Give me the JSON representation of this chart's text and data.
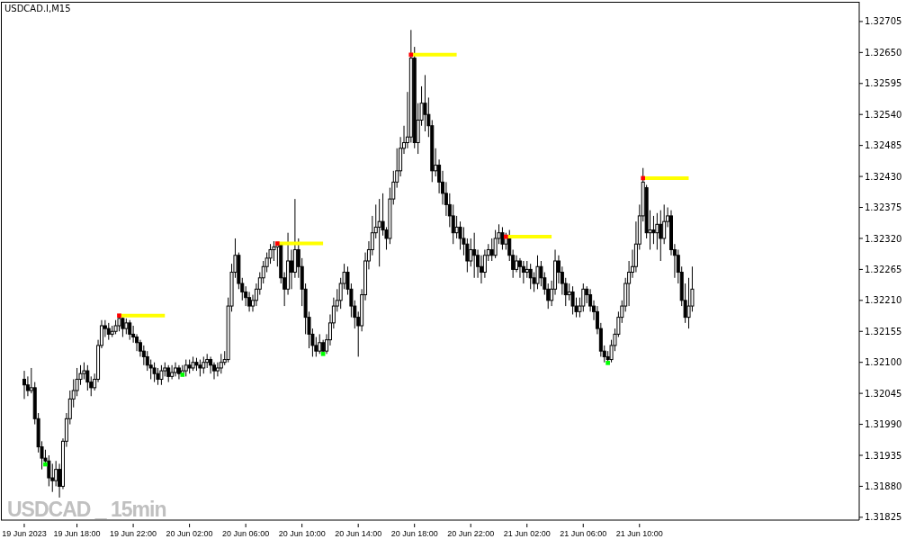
{
  "chart_data": {
    "type": "candlestick",
    "title": "USDCAD.I,M15",
    "color": "#000000",
    "annotations": [
      "USDCAD _ 15min"
    ],
    "categories": [
      "19 Jun 2023",
      null,
      null,
      null,
      null,
      null,
      null,
      null,
      null,
      null,
      null,
      null,
      null,
      null,
      null,
      "19 Jun 18:00",
      null,
      null,
      null,
      null,
      null,
      null,
      null,
      null,
      null,
      null,
      null,
      null,
      null,
      null,
      null,
      "19 Jun 22:00",
      null,
      null,
      null,
      null,
      null,
      null,
      null,
      null,
      null,
      null,
      null,
      null,
      null,
      null,
      null,
      "20 Jun 02:00",
      null,
      null,
      null,
      null,
      null,
      null,
      null,
      null,
      null,
      null,
      null,
      null,
      null,
      null,
      null,
      "20 Jun 06:00",
      null,
      null,
      null,
      null,
      null,
      null,
      null,
      null,
      null,
      null,
      null,
      null,
      null,
      null,
      null,
      "20 Jun 10:00",
      null,
      null,
      null,
      null,
      null,
      null,
      null,
      null,
      null,
      null,
      null,
      null,
      null,
      null,
      null,
      "20 Jun 14:00",
      null,
      null,
      null,
      null,
      null,
      null,
      null,
      null,
      null,
      null,
      null,
      null,
      null,
      null,
      null,
      "20 Jun 18:00",
      null,
      null,
      null,
      null,
      null,
      null,
      null,
      null,
      null,
      null,
      null,
      null,
      null,
      null,
      null,
      "20 Jun 22:00",
      null,
      null,
      null,
      null,
      null,
      null,
      null,
      null,
      null,
      null,
      null,
      null,
      null,
      null,
      null,
      "21 Jun 02:00",
      null,
      null,
      null,
      null,
      null,
      null,
      null,
      null,
      null,
      null,
      null,
      null,
      null,
      null,
      null,
      "21 Jun 06:00",
      null,
      null,
      null,
      null,
      null,
      null,
      null,
      null,
      null,
      null,
      null,
      null,
      null,
      null,
      null,
      "21 Jun 10:00",
      null,
      null,
      null,
      null,
      null,
      null,
      null,
      null,
      null,
      null,
      null,
      null,
      null,
      null,
      null,
      null,
      null,
      null,
      null,
      null,
      null,
      null,
      null,
      null,
      null,
      null,
      null,
      null,
      null,
      null,
      null,
      null,
      null,
      null,
      null,
      null,
      null,
      null,
      null,
      null,
      null,
      null,
      null,
      null,
      null,
      null,
      null,
      null,
      null,
      null,
      null,
      null,
      null,
      null,
      null,
      null,
      null,
      null,
      null,
      null,
      null,
      null
    ],
    "ohlc": [
      [
        1.3207,
        1.32085,
        1.32035,
        1.3206
      ],
      [
        1.3206,
        1.32075,
        1.3204,
        1.3205
      ],
      [
        1.3205,
        1.3209,
        1.32045,
        1.32055
      ],
      [
        1.32055,
        1.32065,
        1.3199,
        1.32
      ],
      [
        1.32,
        1.3201,
        1.3194,
        1.3195
      ],
      [
        1.3195,
        1.3196,
        1.3191,
        1.3193
      ],
      [
        1.3193,
        1.31945,
        1.31919,
        1.31925
      ],
      [
        1.31925,
        1.31935,
        1.3188,
        1.31895
      ],
      [
        1.31895,
        1.3192,
        1.3187,
        1.3189
      ],
      [
        1.3189,
        1.31925,
        1.3188,
        1.3191
      ],
      [
        1.3191,
        1.3192,
        1.3186,
        1.3188
      ],
      [
        1.3188,
        1.31965,
        1.31875,
        1.3196
      ],
      [
        1.3196,
        1.3201,
        1.3195,
        1.32
      ],
      [
        1.32,
        1.3205,
        1.3199,
        1.32035
      ],
      [
        1.32035,
        1.3207,
        1.3202,
        1.3205
      ],
      [
        1.3205,
        1.3209,
        1.3204,
        1.3207
      ],
      [
        1.3207,
        1.32095,
        1.3206,
        1.3208
      ],
      [
        1.3208,
        1.321,
        1.3207,
        1.32085
      ],
      [
        1.32085,
        1.32095,
        1.3205,
        1.32065
      ],
      [
        1.32065,
        1.32075,
        1.3204,
        1.32055
      ],
      [
        1.32055,
        1.3208,
        1.3205,
        1.3207
      ],
      [
        1.3207,
        1.3214,
        1.32065,
        1.3213
      ],
      [
        1.3213,
        1.32175,
        1.32125,
        1.32165
      ],
      [
        1.32165,
        1.32175,
        1.32145,
        1.3216
      ],
      [
        1.3216,
        1.3217,
        1.3214,
        1.3215
      ],
      [
        1.3215,
        1.32165,
        1.32145,
        1.32155
      ],
      [
        1.32155,
        1.32175,
        1.3215,
        1.32165
      ],
      [
        1.32165,
        1.32183,
        1.32155,
        1.32178
      ],
      [
        1.32178,
        1.3218,
        1.32145,
        1.3216
      ],
      [
        1.3216,
        1.32178,
        1.3215,
        1.3217
      ],
      [
        1.3217,
        1.32175,
        1.3214,
        1.3215
      ],
      [
        1.3215,
        1.32165,
        1.32135,
        1.32145
      ],
      [
        1.32145,
        1.3215,
        1.3212,
        1.32135
      ],
      [
        1.32135,
        1.3214,
        1.3211,
        1.3212
      ],
      [
        1.3212,
        1.3213,
        1.32095,
        1.3211
      ],
      [
        1.3211,
        1.3212,
        1.32085,
        1.32095
      ],
      [
        1.32095,
        1.32105,
        1.3207,
        1.3209
      ],
      [
        1.3209,
        1.321,
        1.32065,
        1.3208
      ],
      [
        1.3208,
        1.3209,
        1.3206,
        1.3207
      ],
      [
        1.3207,
        1.32095,
        1.3206,
        1.32085
      ],
      [
        1.32085,
        1.321,
        1.32075,
        1.3209
      ],
      [
        1.3209,
        1.32095,
        1.32065,
        1.32075
      ],
      [
        1.32075,
        1.32095,
        1.3207,
        1.32082
      ],
      [
        1.32082,
        1.321,
        1.32075,
        1.3209
      ],
      [
        1.3209,
        1.32095,
        1.3207,
        1.3208
      ],
      [
        1.3208,
        1.32095,
        1.32078,
        1.32085
      ],
      [
        1.32085,
        1.32105,
        1.32075,
        1.32095
      ],
      [
        1.32095,
        1.32105,
        1.3208,
        1.3209
      ],
      [
        1.3209,
        1.3211,
        1.32085,
        1.321
      ],
      [
        1.321,
        1.32108,
        1.32085,
        1.32095
      ],
      [
        1.32095,
        1.32105,
        1.32075,
        1.3209
      ],
      [
        1.3209,
        1.3211,
        1.3208,
        1.321
      ],
      [
        1.321,
        1.32115,
        1.3209,
        1.32105
      ],
      [
        1.32105,
        1.3211,
        1.3208,
        1.32095
      ],
      [
        1.32095,
        1.321,
        1.3207,
        1.32085
      ],
      [
        1.32085,
        1.321,
        1.32075,
        1.3209
      ],
      [
        1.3209,
        1.32115,
        1.3208,
        1.321
      ],
      [
        1.321,
        1.3212,
        1.32095,
        1.32105
      ],
      [
        1.32105,
        1.32215,
        1.321,
        1.322
      ],
      [
        1.322,
        1.32275,
        1.3219,
        1.3226
      ],
      [
        1.3226,
        1.3232,
        1.3225,
        1.3229
      ],
      [
        1.3229,
        1.32295,
        1.3223,
        1.3224
      ],
      [
        1.3224,
        1.3225,
        1.3221,
        1.32225
      ],
      [
        1.32225,
        1.32235,
        1.322,
        1.32215
      ],
      [
        1.32215,
        1.32225,
        1.3219,
        1.322
      ],
      [
        1.322,
        1.3222,
        1.3219,
        1.3221
      ],
      [
        1.3221,
        1.3224,
        1.322,
        1.3223
      ],
      [
        1.3223,
        1.3226,
        1.3222,
        1.3225
      ],
      [
        1.3225,
        1.3228,
        1.3224,
        1.3227
      ],
      [
        1.3227,
        1.32295,
        1.3226,
        1.32285
      ],
      [
        1.32285,
        1.3231,
        1.32275,
        1.323
      ],
      [
        1.323,
        1.32315,
        1.3228,
        1.32305
      ],
      [
        1.32305,
        1.32311,
        1.3227,
        1.32308
      ],
      [
        1.32308,
        1.32312,
        1.3224,
        1.3225
      ],
      [
        1.3225,
        1.3226,
        1.322,
        1.3223
      ],
      [
        1.3223,
        1.3233,
        1.3222,
        1.3228
      ],
      [
        1.3228,
        1.323,
        1.3223,
        1.3226
      ],
      [
        1.3226,
        1.3239,
        1.3225,
        1.323
      ],
      [
        1.323,
        1.3232,
        1.3225,
        1.3227
      ],
      [
        1.3227,
        1.32285,
        1.322,
        1.3223
      ],
      [
        1.3223,
        1.3224,
        1.3215,
        1.3218
      ],
      [
        1.3218,
        1.3219,
        1.32125,
        1.3215
      ],
      [
        1.3215,
        1.3216,
        1.3211,
        1.3213
      ],
      [
        1.3213,
        1.32145,
        1.3211,
        1.3212
      ],
      [
        1.3212,
        1.3215,
        1.32115,
        1.32135
      ],
      [
        1.32135,
        1.3214,
        1.32115,
        1.3212
      ],
      [
        1.3212,
        1.3215,
        1.32115,
        1.3214
      ],
      [
        1.3214,
        1.32185,
        1.3213,
        1.3217
      ],
      [
        1.3217,
        1.32215,
        1.3216,
        1.322
      ],
      [
        1.322,
        1.3223,
        1.3219,
        1.3221
      ],
      [
        1.3221,
        1.3225,
        1.32195,
        1.3224
      ],
      [
        1.3224,
        1.32275,
        1.3223,
        1.3226
      ],
      [
        1.3226,
        1.3227,
        1.3222,
        1.3223
      ],
      [
        1.3223,
        1.3224,
        1.3218,
        1.322
      ],
      [
        1.322,
        1.3221,
        1.3216,
        1.3218
      ],
      [
        1.3218,
        1.3219,
        1.3211,
        1.32165
      ],
      [
        1.32165,
        1.3223,
        1.32155,
        1.3222
      ],
      [
        1.3222,
        1.32295,
        1.3221,
        1.3228
      ],
      [
        1.3228,
        1.32315,
        1.32265,
        1.323
      ],
      [
        1.323,
        1.3236,
        1.3229,
        1.3233
      ],
      [
        1.3233,
        1.3238,
        1.3232,
        1.3234
      ],
      [
        1.3234,
        1.3239,
        1.3227,
        1.3235
      ],
      [
        1.3235,
        1.324,
        1.32325,
        1.32335
      ],
      [
        1.32335,
        1.3234,
        1.323,
        1.3232
      ],
      [
        1.3232,
        1.3241,
        1.3231,
        1.3239
      ],
      [
        1.3239,
        1.3244,
        1.3238,
        1.3242
      ],
      [
        1.3242,
        1.3248,
        1.3241,
        1.3244
      ],
      [
        1.3244,
        1.325,
        1.3243,
        1.3248
      ],
      [
        1.3248,
        1.3252,
        1.3247,
        1.3249
      ],
      [
        1.3249,
        1.3258,
        1.3248,
        1.325
      ],
      [
        1.325,
        1.3269,
        1.3249,
        1.3264
      ],
      [
        1.3264,
        1.3266,
        1.3248,
        1.3249
      ],
      [
        1.3249,
        1.3256,
        1.3247,
        1.3253
      ],
      [
        1.3253,
        1.3259,
        1.3252,
        1.3256
      ],
      [
        1.3256,
        1.3261,
        1.3251,
        1.3254
      ],
      [
        1.3254,
        1.3257,
        1.325,
        1.3252
      ],
      [
        1.3252,
        1.3253,
        1.3242,
        1.3244
      ],
      [
        1.3244,
        1.3248,
        1.3243,
        1.3245
      ],
      [
        1.3245,
        1.3246,
        1.324,
        1.3242
      ],
      [
        1.3242,
        1.3244,
        1.3238,
        1.324
      ],
      [
        1.324,
        1.3242,
        1.3236,
        1.3238
      ],
      [
        1.3238,
        1.324,
        1.3234,
        1.3236
      ],
      [
        1.3236,
        1.3238,
        1.3231,
        1.3233
      ],
      [
        1.3233,
        1.3236,
        1.3232,
        1.3234
      ],
      [
        1.3234,
        1.3235,
        1.323,
        1.3232
      ],
      [
        1.3232,
        1.3234,
        1.3229,
        1.3231
      ],
      [
        1.3231,
        1.3232,
        1.3226,
        1.3228
      ],
      [
        1.3228,
        1.3232,
        1.3227,
        1.323
      ],
      [
        1.323,
        1.3233,
        1.3225,
        1.3229
      ],
      [
        1.3229,
        1.323,
        1.3225,
        1.3227
      ],
      [
        1.3227,
        1.3229,
        1.3224,
        1.3226
      ],
      [
        1.3226,
        1.323,
        1.3225,
        1.3229
      ],
      [
        1.3229,
        1.3231,
        1.3228,
        1.323
      ],
      [
        1.323,
        1.3232,
        1.3228,
        1.3229
      ],
      [
        1.3229,
        1.32335,
        1.32285,
        1.3232
      ],
      [
        1.3232,
        1.32345,
        1.3231,
        1.3233
      ],
      [
        1.3233,
        1.3234,
        1.323,
        1.3231
      ],
      [
        1.3231,
        1.3233,
        1.323,
        1.32325
      ],
      [
        1.32325,
        1.32335,
        1.3228,
        1.3229
      ],
      [
        1.3229,
        1.323,
        1.3225,
        1.32265
      ],
      [
        1.32265,
        1.3229,
        1.3226,
        1.3228
      ],
      [
        1.3228,
        1.32285,
        1.3225,
        1.3227
      ],
      [
        1.3227,
        1.3228,
        1.3224,
        1.3226
      ],
      [
        1.3226,
        1.3228,
        1.3225,
        1.32265
      ],
      [
        1.32265,
        1.32275,
        1.3223,
        1.3225
      ],
      [
        1.3225,
        1.3226,
        1.32225,
        1.3224
      ],
      [
        1.3224,
        1.3229,
        1.3223,
        1.3227
      ],
      [
        1.3227,
        1.3228,
        1.32235,
        1.3225
      ],
      [
        1.3225,
        1.3226,
        1.3222,
        1.3223
      ],
      [
        1.3223,
        1.3224,
        1.32195,
        1.3221
      ],
      [
        1.3221,
        1.32245,
        1.322,
        1.3223
      ],
      [
        1.3223,
        1.323,
        1.3222,
        1.3228
      ],
      [
        1.3228,
        1.3229,
        1.3224,
        1.3226
      ],
      [
        1.3226,
        1.3227,
        1.3222,
        1.3224
      ],
      [
        1.3224,
        1.3225,
        1.322,
        1.3222
      ],
      [
        1.3222,
        1.3224,
        1.3221,
        1.32225
      ],
      [
        1.32225,
        1.32235,
        1.32185,
        1.322
      ],
      [
        1.322,
        1.32215,
        1.3218,
        1.3219
      ],
      [
        1.3219,
        1.32215,
        1.3218,
        1.322
      ],
      [
        1.322,
        1.3224,
        1.3219,
        1.3223
      ],
      [
        1.3223,
        1.32235,
        1.32205,
        1.3222
      ],
      [
        1.3222,
        1.3223,
        1.3219,
        1.322
      ],
      [
        1.322,
        1.3221,
        1.32175,
        1.3219
      ],
      [
        1.3219,
        1.322,
        1.3215,
        1.3216
      ],
      [
        1.3216,
        1.3217,
        1.3211,
        1.3212
      ],
      [
        1.3212,
        1.3213,
        1.321,
        1.3211
      ],
      [
        1.3211,
        1.3212,
        1.32099,
        1.32105
      ],
      [
        1.32105,
        1.3214,
        1.321,
        1.3213
      ],
      [
        1.3213,
        1.3216,
        1.3212,
        1.3215
      ],
      [
        1.3215,
        1.3219,
        1.32145,
        1.3218
      ],
      [
        1.3218,
        1.3221,
        1.3217,
        1.322
      ],
      [
        1.322,
        1.3225,
        1.3219,
        1.3224
      ],
      [
        1.3224,
        1.3228,
        1.322,
        1.3226
      ],
      [
        1.3226,
        1.323,
        1.3225,
        1.3227
      ],
      [
        1.3227,
        1.3235,
        1.3226,
        1.3231
      ],
      [
        1.3231,
        1.3238,
        1.323,
        1.3236
      ],
      [
        1.3236,
        1.32445,
        1.3235,
        1.3242
      ],
      [
        1.3241,
        1.32415,
        1.3232,
        1.3233
      ],
      [
        1.3233,
        1.3237,
        1.323,
        1.32335
      ],
      [
        1.32335,
        1.3236,
        1.3231,
        1.3233
      ],
      [
        1.3233,
        1.32365,
        1.323,
        1.32345
      ],
      [
        1.32345,
        1.3237,
        1.3228,
        1.3232
      ],
      [
        1.3232,
        1.3238,
        1.3231,
        1.3235
      ],
      [
        1.3235,
        1.32375,
        1.3234,
        1.3236
      ],
      [
        1.3236,
        1.3237,
        1.3229,
        1.323
      ],
      [
        1.323,
        1.3231,
        1.3225,
        1.3229
      ],
      [
        1.3229,
        1.323,
        1.3224,
        1.3226
      ],
      [
        1.3226,
        1.3227,
        1.322,
        1.3221
      ],
      [
        1.3221,
        1.3224,
        1.3217,
        1.3218
      ],
      [
        1.3218,
        1.3225,
        1.3216,
        1.322
      ],
      [
        1.322,
        1.3227,
        1.3219,
        1.3223
      ],
      null,
      null,
      null,
      null,
      null,
      null,
      null,
      null,
      null,
      null,
      null,
      null,
      null,
      null,
      null,
      null,
      null,
      null,
      null,
      null,
      null,
      null,
      null,
      null,
      null,
      null,
      null,
      null,
      null,
      null,
      null,
      null,
      null,
      null,
      null,
      null,
      null,
      null,
      null,
      null,
      null,
      null,
      null,
      null,
      null,
      null,
      null
    ],
    "series": [
      {
        "type": "line",
        "color": "#ffff00",
        "marker": "none",
        "values": [
          null,
          null,
          null,
          null,
          null,
          null,
          null,
          null,
          null,
          null,
          null,
          null,
          null,
          null,
          null,
          null,
          null,
          null,
          null,
          null,
          null,
          null,
          null,
          null,
          null,
          null,
          null,
          1.32183,
          1.32183,
          1.32183,
          1.32183,
          1.32183,
          1.32183,
          1.32183,
          1.32183,
          1.32183,
          1.32183,
          1.32183,
          1.32183,
          1.32183,
          1.32183,
          null,
          null,
          null,
          null,
          null,
          null,
          null,
          null,
          null,
          null,
          null,
          null,
          null,
          null,
          null,
          null,
          null,
          null,
          null,
          null,
          null,
          null,
          null,
          null,
          null,
          null,
          null,
          null,
          null,
          null,
          null,
          1.32311,
          1.32311,
          1.32311,
          1.32311,
          1.32311,
          1.32311,
          1.32311,
          1.32311,
          1.32311,
          1.32311,
          1.32311,
          1.32311,
          1.32311,
          1.32311,
          null,
          null,
          null,
          null,
          null,
          null,
          null,
          null,
          null,
          null,
          null,
          null,
          null,
          null,
          null,
          null,
          null,
          null,
          null,
          null,
          null,
          null,
          null,
          null,
          1.32646,
          1.32646,
          1.32646,
          1.32646,
          1.32646,
          1.32646,
          1.32646,
          1.32646,
          1.32646,
          1.32646,
          1.32646,
          1.32646,
          1.32646,
          1.32646,
          null,
          null,
          null,
          null,
          null,
          null,
          null,
          null,
          null,
          null,
          null,
          null,
          null,
          1.32323,
          1.32323,
          1.32323,
          1.32323,
          1.32323,
          1.32323,
          1.32323,
          1.32323,
          1.32323,
          1.32323,
          1.32323,
          1.32323,
          1.32323,
          1.32323,
          null,
          null,
          null,
          null,
          null,
          null,
          null,
          null,
          null,
          null,
          null,
          null,
          null,
          null,
          null,
          null,
          null,
          null,
          null,
          null,
          null,
          null,
          null,
          null,
          null,
          1.32427,
          1.32427,
          1.32427,
          1.32427,
          1.32427,
          1.32427,
          1.32427,
          1.32427,
          1.32427,
          1.32427,
          1.32427,
          1.32427,
          1.32427,
          1.32427,
          null,
          null,
          null,
          null,
          null,
          null,
          null,
          null,
          null,
          null,
          null,
          null,
          null,
          null,
          null,
          null,
          null,
          null,
          null,
          null,
          null,
          null,
          null,
          null,
          null,
          null,
          null,
          null,
          null,
          null,
          null,
          null,
          null,
          null,
          null,
          null,
          null,
          null,
          null,
          null,
          null,
          null,
          null,
          null,
          null,
          null,
          null,
          null
        ]
      },
      {
        "type": "scatter",
        "color": "#ff0000",
        "marker": "square",
        "values": [
          null,
          null,
          null,
          null,
          null,
          null,
          null,
          null,
          null,
          null,
          null,
          null,
          null,
          null,
          null,
          null,
          null,
          null,
          null,
          null,
          null,
          null,
          null,
          null,
          null,
          null,
          null,
          1.32183,
          null,
          null,
          null,
          null,
          null,
          null,
          null,
          null,
          null,
          null,
          null,
          null,
          null,
          null,
          null,
          null,
          null,
          null,
          null,
          null,
          null,
          null,
          null,
          null,
          null,
          null,
          null,
          null,
          null,
          null,
          null,
          null,
          null,
          null,
          null,
          null,
          null,
          null,
          null,
          null,
          null,
          null,
          null,
          null,
          1.32311,
          null,
          null,
          null,
          null,
          null,
          null,
          null,
          null,
          null,
          null,
          null,
          null,
          null,
          null,
          null,
          null,
          null,
          null,
          null,
          null,
          null,
          null,
          null,
          null,
          null,
          null,
          null,
          null,
          null,
          null,
          null,
          null,
          null,
          null,
          null,
          null,
          null,
          1.32646,
          null,
          null,
          null,
          null,
          null,
          null,
          null,
          null,
          null,
          null,
          null,
          null,
          null,
          null,
          null,
          null,
          null,
          null,
          null,
          null,
          null,
          null,
          null,
          null,
          null,
          null,
          1.32323,
          null,
          null,
          null,
          null,
          null,
          null,
          null,
          null,
          null,
          null,
          null,
          null,
          null,
          null,
          null,
          null,
          null,
          null,
          null,
          null,
          null,
          null,
          null,
          null,
          null,
          null,
          null,
          null,
          null,
          null,
          null,
          null,
          null,
          null,
          null,
          null,
          null,
          null,
          1.32427,
          null,
          null,
          null,
          null,
          null,
          null,
          null,
          null,
          null,
          null,
          null,
          null,
          null,
          null,
          null,
          null,
          null,
          null,
          null,
          null,
          null,
          null,
          null,
          null,
          null,
          null,
          null,
          null,
          null,
          null,
          null,
          null,
          null,
          null,
          null,
          null,
          null,
          null,
          null,
          null,
          null,
          null,
          null,
          null,
          null,
          null,
          null,
          null,
          null,
          null,
          null,
          null,
          null,
          null,
          null,
          null,
          null,
          null,
          null,
          null,
          null
        ]
      },
      {
        "type": "scatter",
        "color": "#00ff00",
        "marker": "square",
        "values": [
          null,
          null,
          null,
          null,
          null,
          null,
          1.31919,
          null,
          null,
          null,
          null,
          null,
          null,
          null,
          null,
          null,
          null,
          null,
          null,
          null,
          null,
          null,
          null,
          null,
          null,
          null,
          null,
          null,
          null,
          null,
          null,
          null,
          null,
          null,
          null,
          null,
          null,
          null,
          null,
          null,
          null,
          null,
          null,
          null,
          null,
          1.32078,
          null,
          null,
          null,
          null,
          null,
          null,
          null,
          null,
          null,
          null,
          null,
          null,
          null,
          null,
          null,
          null,
          null,
          null,
          null,
          null,
          null,
          null,
          null,
          null,
          null,
          null,
          null,
          null,
          null,
          null,
          null,
          null,
          null,
          null,
          null,
          null,
          null,
          null,
          null,
          1.32115,
          null,
          null,
          null,
          null,
          null,
          null,
          null,
          null,
          null,
          null,
          null,
          null,
          null,
          null,
          null,
          null,
          null,
          null,
          null,
          null,
          null,
          null,
          null,
          null,
          null,
          null,
          null,
          null,
          null,
          null,
          null,
          null,
          null,
          null,
          null,
          null,
          null,
          null,
          null,
          null,
          null,
          null,
          null,
          null,
          null,
          null,
          null,
          null,
          null,
          null,
          null,
          null,
          null,
          null,
          null,
          null,
          null,
          null,
          null,
          null,
          null,
          null,
          null,
          null,
          null,
          null,
          null,
          null,
          null,
          null,
          null,
          null,
          null,
          null,
          null,
          null,
          null,
          null,
          null,
          null,
          1.32099,
          null,
          null,
          null,
          null,
          null,
          null,
          null,
          null,
          null,
          null,
          null,
          null,
          null,
          null,
          null,
          null,
          null,
          null,
          null,
          null,
          null,
          null,
          null,
          null,
          null,
          null,
          null,
          null,
          null,
          null,
          null,
          null,
          null,
          null,
          null,
          null,
          null,
          null,
          null,
          null,
          null,
          null,
          null,
          null,
          null,
          null,
          null,
          null,
          null,
          null,
          null,
          null,
          null,
          null,
          null,
          null,
          null,
          null,
          null,
          null,
          null,
          null,
          null,
          null,
          null,
          null,
          null,
          null,
          null,
          null,
          null
        ]
      }
    ],
    "ylim": [
      1.3182,
      1.3274
    ],
    "yticks": [
      1.31825,
      {
        "value": 1.3188,
        "label": "1.31880"
      },
      1.31935,
      {
        "value": 1.3199,
        "label": "1.31990"
      },
      1.32045,
      {
        "value": 1.321,
        "label": "1.32100"
      },
      1.32155,
      {
        "value": 1.3221,
        "label": "1.32210"
      },
      1.32265,
      {
        "value": 1.3232,
        "label": "1.32320"
      },
      1.32375,
      {
        "value": 1.3243,
        "label": "1.32430"
      },
      1.32485,
      {
        "value": 1.3254,
        "label": "1.32540"
      },
      1.32595,
      {
        "value": 1.3265,
        "label": "1.32650"
      },
      1.32705
    ]
  }
}
